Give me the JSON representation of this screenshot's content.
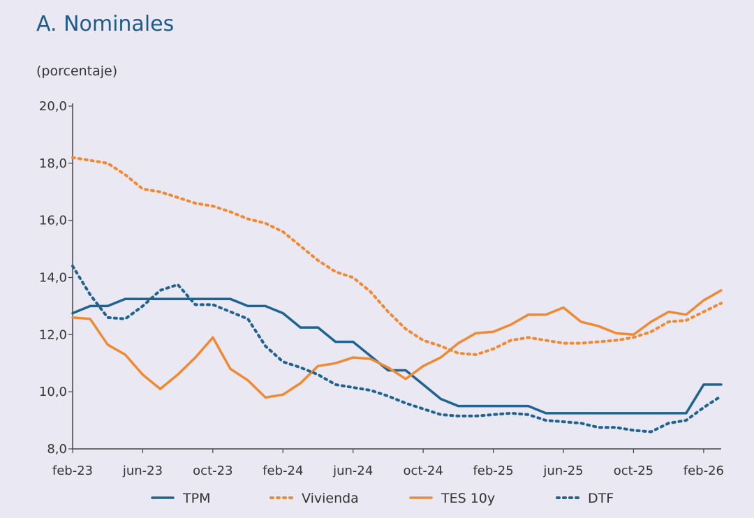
{
  "chart_data": {
    "type": "line",
    "title": "A. Nominales",
    "ylabel": "(porcentaje)",
    "ylim": [
      8,
      20
    ],
    "yticks": [
      "8,0",
      "10,0",
      "12,0",
      "14,0",
      "16,0",
      "18,0",
      "20,0"
    ],
    "yticks_values": [
      8,
      10,
      12,
      14,
      16,
      18,
      20
    ],
    "xticks": [
      "feb-23",
      "jun-23",
      "oct-23",
      "feb-24",
      "jun-24",
      "oct-24",
      "feb-25",
      "jun-25",
      "oct-25",
      "feb-26"
    ],
    "x_start": "feb-23",
    "x_end": "mar-26",
    "grid": false,
    "legend_position": "bottom",
    "series": [
      {
        "name": "TPM",
        "color": "#1f6390",
        "style": "solid",
        "points": [
          [
            "feb-23",
            12.75
          ],
          [
            "mar-23",
            13.0
          ],
          [
            "abr-23",
            13.0
          ],
          [
            "may-23",
            13.25
          ],
          [
            "jun-23",
            13.25
          ],
          [
            "jul-23",
            13.25
          ],
          [
            "ago-23",
            13.25
          ],
          [
            "sep-23",
            13.25
          ],
          [
            "oct-23",
            13.25
          ],
          [
            "nov-23",
            13.25
          ],
          [
            "dic-23",
            13.0
          ],
          [
            "ene-24",
            13.0
          ],
          [
            "feb-24",
            12.75
          ],
          [
            "mar-24",
            12.25
          ],
          [
            "abr-24",
            12.25
          ],
          [
            "may-24",
            11.75
          ],
          [
            "jun-24",
            11.75
          ],
          [
            "jul-24",
            11.25
          ],
          [
            "ago-24",
            10.75
          ],
          [
            "sep-24",
            10.75
          ],
          [
            "oct-24",
            10.25
          ],
          [
            "nov-24",
            9.75
          ],
          [
            "dic-24",
            9.5
          ],
          [
            "ene-25",
            9.5
          ],
          [
            "feb-25",
            9.5
          ],
          [
            "mar-25",
            9.5
          ],
          [
            "abr-25",
            9.5
          ],
          [
            "may-25",
            9.25
          ],
          [
            "jun-25",
            9.25
          ],
          [
            "jul-25",
            9.25
          ],
          [
            "ago-25",
            9.25
          ],
          [
            "sep-25",
            9.25
          ],
          [
            "oct-25",
            9.25
          ],
          [
            "nov-25",
            9.25
          ],
          [
            "dic-25",
            9.25
          ],
          [
            "ene-26",
            9.25
          ],
          [
            "feb-26",
            10.25
          ],
          [
            "mar-26",
            10.25
          ]
        ]
      },
      {
        "name": "Vivienda",
        "color": "#ef8a32",
        "style": "dotted",
        "points": [
          [
            "feb-23",
            18.2
          ],
          [
            "mar-23",
            18.1
          ],
          [
            "abr-23",
            18.0
          ],
          [
            "may-23",
            17.6
          ],
          [
            "jun-23",
            17.1
          ],
          [
            "jul-23",
            17.0
          ],
          [
            "ago-23",
            16.8
          ],
          [
            "sep-23",
            16.6
          ],
          [
            "oct-23",
            16.5
          ],
          [
            "nov-23",
            16.3
          ],
          [
            "dic-23",
            16.05
          ],
          [
            "ene-24",
            15.9
          ],
          [
            "feb-24",
            15.6
          ],
          [
            "mar-24",
            15.1
          ],
          [
            "abr-24",
            14.6
          ],
          [
            "may-24",
            14.2
          ],
          [
            "jun-24",
            14.0
          ],
          [
            "jul-24",
            13.5
          ],
          [
            "ago-24",
            12.8
          ],
          [
            "sep-24",
            12.2
          ],
          [
            "oct-24",
            11.8
          ],
          [
            "nov-24",
            11.6
          ],
          [
            "dic-24",
            11.35
          ],
          [
            "ene-25",
            11.3
          ],
          [
            "feb-25",
            11.5
          ],
          [
            "mar-25",
            11.8
          ],
          [
            "abr-25",
            11.9
          ],
          [
            "may-25",
            11.8
          ],
          [
            "jun-25",
            11.7
          ],
          [
            "jul-25",
            11.7
          ],
          [
            "ago-25",
            11.75
          ],
          [
            "sep-25",
            11.8
          ],
          [
            "oct-25",
            11.9
          ],
          [
            "nov-25",
            12.1
          ],
          [
            "dic-25",
            12.45
          ],
          [
            "ene-26",
            12.5
          ],
          [
            "feb-26",
            12.8
          ],
          [
            "mar-26",
            13.1
          ]
        ]
      },
      {
        "name": "TES 10y",
        "color": "#ef8a32",
        "style": "solid",
        "points": [
          [
            "feb-23",
            12.6
          ],
          [
            "mar-23",
            12.55
          ],
          [
            "abr-23",
            11.65
          ],
          [
            "may-23",
            11.3
          ],
          [
            "jun-23",
            10.6
          ],
          [
            "jul-23",
            10.1
          ],
          [
            "ago-23",
            10.6
          ],
          [
            "sep-23",
            11.2
          ],
          [
            "oct-23",
            11.9
          ],
          [
            "nov-23",
            10.8
          ],
          [
            "dic-23",
            10.4
          ],
          [
            "ene-24",
            9.8
          ],
          [
            "feb-24",
            9.9
          ],
          [
            "mar-24",
            10.3
          ],
          [
            "abr-24",
            10.9
          ],
          [
            "may-24",
            11.0
          ],
          [
            "jun-24",
            11.2
          ],
          [
            "jul-24",
            11.15
          ],
          [
            "ago-24",
            10.85
          ],
          [
            "sep-24",
            10.45
          ],
          [
            "oct-24",
            10.9
          ],
          [
            "nov-24",
            11.2
          ],
          [
            "dic-24",
            11.7
          ],
          [
            "ene-25",
            12.05
          ],
          [
            "feb-25",
            12.1
          ],
          [
            "mar-25",
            12.35
          ],
          [
            "abr-25",
            12.7
          ],
          [
            "may-25",
            12.7
          ],
          [
            "jun-25",
            12.95
          ],
          [
            "jul-25",
            12.45
          ],
          [
            "ago-25",
            12.3
          ],
          [
            "sep-25",
            12.05
          ],
          [
            "oct-25",
            12.0
          ],
          [
            "nov-25",
            12.45
          ],
          [
            "dic-25",
            12.8
          ],
          [
            "ene-26",
            12.7
          ],
          [
            "feb-26",
            13.2
          ],
          [
            "mar-26",
            13.55
          ]
        ]
      },
      {
        "name": "DTF",
        "color": "#1f6390",
        "style": "dotted",
        "points": [
          [
            "feb-23",
            14.4
          ],
          [
            "mar-23",
            13.4
          ],
          [
            "abr-23",
            12.6
          ],
          [
            "may-23",
            12.55
          ],
          [
            "jun-23",
            13.0
          ],
          [
            "jul-23",
            13.55
          ],
          [
            "ago-23",
            13.75
          ],
          [
            "sep-23",
            13.05
          ],
          [
            "oct-23",
            13.05
          ],
          [
            "nov-23",
            12.8
          ],
          [
            "dic-23",
            12.55
          ],
          [
            "ene-24",
            11.6
          ],
          [
            "feb-24",
            11.05
          ],
          [
            "mar-24",
            10.85
          ],
          [
            "abr-24",
            10.6
          ],
          [
            "may-24",
            10.25
          ],
          [
            "jun-24",
            10.15
          ],
          [
            "jul-24",
            10.05
          ],
          [
            "ago-24",
            9.85
          ],
          [
            "sep-24",
            9.6
          ],
          [
            "oct-24",
            9.4
          ],
          [
            "nov-24",
            9.2
          ],
          [
            "dic-24",
            9.15
          ],
          [
            "ene-25",
            9.15
          ],
          [
            "feb-25",
            9.2
          ],
          [
            "mar-25",
            9.25
          ],
          [
            "abr-25",
            9.2
          ],
          [
            "may-25",
            9.0
          ],
          [
            "jun-25",
            8.95
          ],
          [
            "jul-25",
            8.9
          ],
          [
            "ago-25",
            8.75
          ],
          [
            "sep-25",
            8.75
          ],
          [
            "oct-25",
            8.65
          ],
          [
            "nov-25",
            8.6
          ],
          [
            "dic-25",
            8.9
          ],
          [
            "ene-26",
            9.0
          ],
          [
            "feb-26",
            9.45
          ],
          [
            "mar-26",
            9.85
          ]
        ]
      }
    ]
  }
}
